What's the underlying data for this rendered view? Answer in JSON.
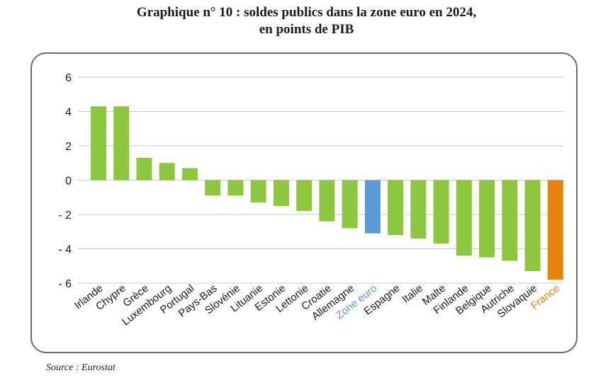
{
  "title_line1": "Graphique n° 10 : soldes publics dans la zone euro en 2024,",
  "title_line2": "en points de PIB",
  "source": "Source : Eurostat",
  "colors": {
    "default": "#8dc63f",
    "euro_area": "#5b9bd5",
    "france": "#e8830c",
    "grid": "#c8c8c8"
  },
  "chart_data": {
    "type": "bar",
    "title": "Graphique n° 10 : soldes publics dans la zone euro en 2024, en points de PIB",
    "xlabel": "",
    "ylabel": "",
    "ylim": [
      -6,
      6
    ],
    "yticks": [
      6,
      4,
      2,
      0,
      -2,
      -4,
      -6
    ],
    "ytick_labels": [
      "6",
      "4",
      "2",
      "0",
      "- 2",
      "- 4",
      "- 6"
    ],
    "grid": true,
    "categories": [
      "Irlande",
      "Chypre",
      "Grèce",
      "Luxembourg",
      "Portugal",
      "Pays-Bas",
      "Slovénie",
      "Lituanie",
      "Estonie",
      "Lettonie",
      "Croatie",
      "Allemagne",
      "Zone euro",
      "Espagne",
      "Italie",
      "Malte",
      "Finlande",
      "Belgique",
      "Autriche",
      "Slovaquie",
      "France"
    ],
    "values": [
      4.3,
      4.3,
      1.3,
      1.0,
      0.7,
      -0.9,
      -0.9,
      -1.3,
      -1.5,
      -1.8,
      -2.4,
      -2.8,
      -3.1,
      -3.2,
      -3.4,
      -3.7,
      -4.4,
      -4.5,
      -4.7,
      -5.3,
      -5.8
    ],
    "highlight": {
      "Zone euro": "euro_area",
      "France": "france"
    }
  }
}
